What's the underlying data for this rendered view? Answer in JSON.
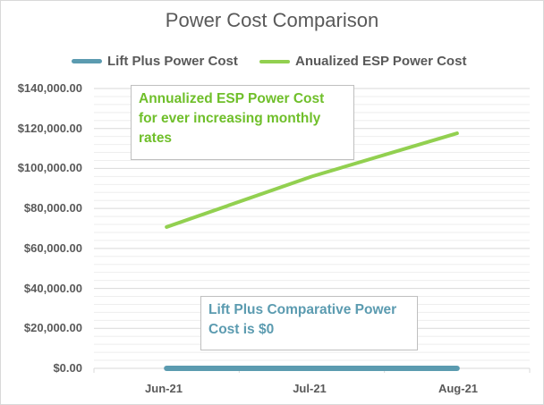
{
  "chart_data": {
    "type": "line",
    "title": "Power Cost Comparison",
    "categories": [
      "Jun-21",
      "Jul-21",
      "Aug-21"
    ],
    "series": [
      {
        "name": "Lift Plus Power Cost",
        "values": [
          0,
          0,
          0
        ],
        "color": "#5b9bb0"
      },
      {
        "name": "Anualized ESP Power Cost",
        "values": [
          70700,
          96000,
          117600
        ],
        "color": "#92d050"
      }
    ],
    "ylim": [
      0,
      140000
    ],
    "yticks": [
      "$0.00",
      "$20,000.00",
      "$40,000.00",
      "$60,000.00",
      "$80,000.00",
      "$100,000.00",
      "$120,000.00",
      "$140,000.00"
    ],
    "grid": true,
    "legend": "top",
    "annotations": [
      {
        "text": "Annualized ESP Power Cost for ever increasing monthly rates",
        "color": "#6fbf2a"
      },
      {
        "text": "Lift Plus Comparative Power Cost is $0",
        "color": "#5b9bb0"
      }
    ]
  }
}
